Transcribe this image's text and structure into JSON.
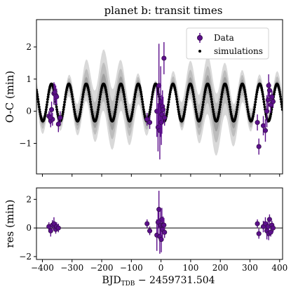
{
  "chart_data": [
    {
      "type": "scatter",
      "title": "planet b: transit times",
      "ylabel": "O-C (min)",
      "xlim": [
        -420,
        410
      ],
      "ylim": [
        -1.95,
        2.85
      ],
      "yticks": [
        -1,
        0,
        1,
        2
      ],
      "legend": {
        "placement": "top-right",
        "entries": [
          "Data",
          "simulations"
        ]
      },
      "colors": {
        "data": "#5c0f8b",
        "data_edge": "#2e0f40",
        "simulations": "#000000",
        "band_outer": "#d9d9d9",
        "band_middle": "#bdbdbd",
        "band_inner": "#9f9f9f"
      },
      "simulation_model": {
        "offset_min": 0.27,
        "amplitude_min": 0.58,
        "period_days": 58.5,
        "phase_ref_day": -340
      },
      "series": [
        {
          "name": "Data",
          "x": [
            -378,
            -372,
            -366,
            -361,
            -355,
            -352,
            -346,
            -374,
            -369,
            -358,
            -340,
            -47,
            -38,
            -14,
            -10,
            -7,
            -4,
            -1,
            1,
            3,
            5,
            7,
            10,
            12,
            325,
            330,
            345,
            352,
            357,
            361,
            363,
            366,
            370,
            374,
            378
          ],
          "y": [
            -0.15,
            -0.3,
            -0.25,
            0.55,
            0.5,
            0.45,
            -0.4,
            -0.2,
            0.05,
            0.6,
            -0.2,
            -0.25,
            -0.35,
            0.0,
            -0.5,
            0.8,
            -0.6,
            0.3,
            -0.35,
            -0.1,
            0.15,
            0.05,
            1.65,
            -0.2,
            -0.35,
            -1.1,
            -0.45,
            -0.6,
            0.0,
            0.35,
            0.8,
            0.65,
            0.2,
            0.45,
            0.3
          ],
          "yerr": [
            0.15,
            0.2,
            0.2,
            0.35,
            0.3,
            0.25,
            0.25,
            0.2,
            0.25,
            0.25,
            0.2,
            0.2,
            0.2,
            0.8,
            0.75,
            1.3,
            0.9,
            1.1,
            0.7,
            0.6,
            0.5,
            0.4,
            0.5,
            0.25,
            0.25,
            0.25,
            0.3,
            0.35,
            0.5,
            0.3,
            0.35,
            0.25,
            0.25,
            0.2,
            0.2
          ]
        }
      ],
      "xticks": [
        -400,
        -300,
        -200,
        -100,
        0,
        100,
        200,
        300,
        400
      ]
    },
    {
      "type": "scatter",
      "ylabel": "res (min)",
      "xlabel_main": "BJD",
      "xlabel_sub": "TDB",
      "xlabel_rest": " − 2459731.504",
      "xlim": [
        -420,
        410
      ],
      "ylim": [
        -2.2,
        2.8
      ],
      "yticks": [
        -2,
        0,
        2
      ],
      "xticks": [
        -400,
        -300,
        -200,
        -100,
        0,
        100,
        200,
        300,
        400
      ],
      "xticklabels": [
        "−400",
        "−300",
        "−200",
        "−100",
        "0",
        "100",
        "200",
        "300",
        "400"
      ],
      "yticklabels": [
        "−2",
        "0",
        "2"
      ],
      "series": [
        {
          "name": "res",
          "x": [
            -378,
            -372,
            -366,
            -361,
            -355,
            -352,
            -346,
            -47,
            -38,
            -14,
            -10,
            -7,
            -4,
            -1,
            1,
            3,
            5,
            7,
            10,
            12,
            325,
            330,
            345,
            352,
            357,
            361,
            363,
            366,
            370,
            374,
            378
          ],
          "y": [
            0.1,
            -0.2,
            0.2,
            0.3,
            -0.1,
            0.1,
            0.0,
            0.3,
            -0.2,
            -0.5,
            0.4,
            1.3,
            -0.6,
            0.2,
            -0.8,
            0.6,
            -0.1,
            0.2,
            0.2,
            -0.3,
            0.3,
            -0.4,
            0.1,
            0.3,
            -0.2,
            0.1,
            -0.4,
            0.6,
            -0.3,
            0.2,
            0.0
          ],
          "yerr": [
            0.3,
            0.4,
            0.35,
            0.45,
            0.3,
            0.3,
            0.3,
            0.3,
            0.3,
            1.1,
            1.0,
            1.3,
            1.2,
            1.1,
            0.9,
            0.8,
            0.7,
            0.6,
            0.5,
            0.4,
            0.3,
            0.35,
            0.4,
            0.45,
            0.6,
            0.4,
            0.45,
            0.35,
            0.3,
            0.3,
            0.3
          ]
        }
      ]
    }
  ],
  "axis_text": {
    "top_yticks": [
      "−1",
      "0",
      "1",
      "2"
    ]
  }
}
